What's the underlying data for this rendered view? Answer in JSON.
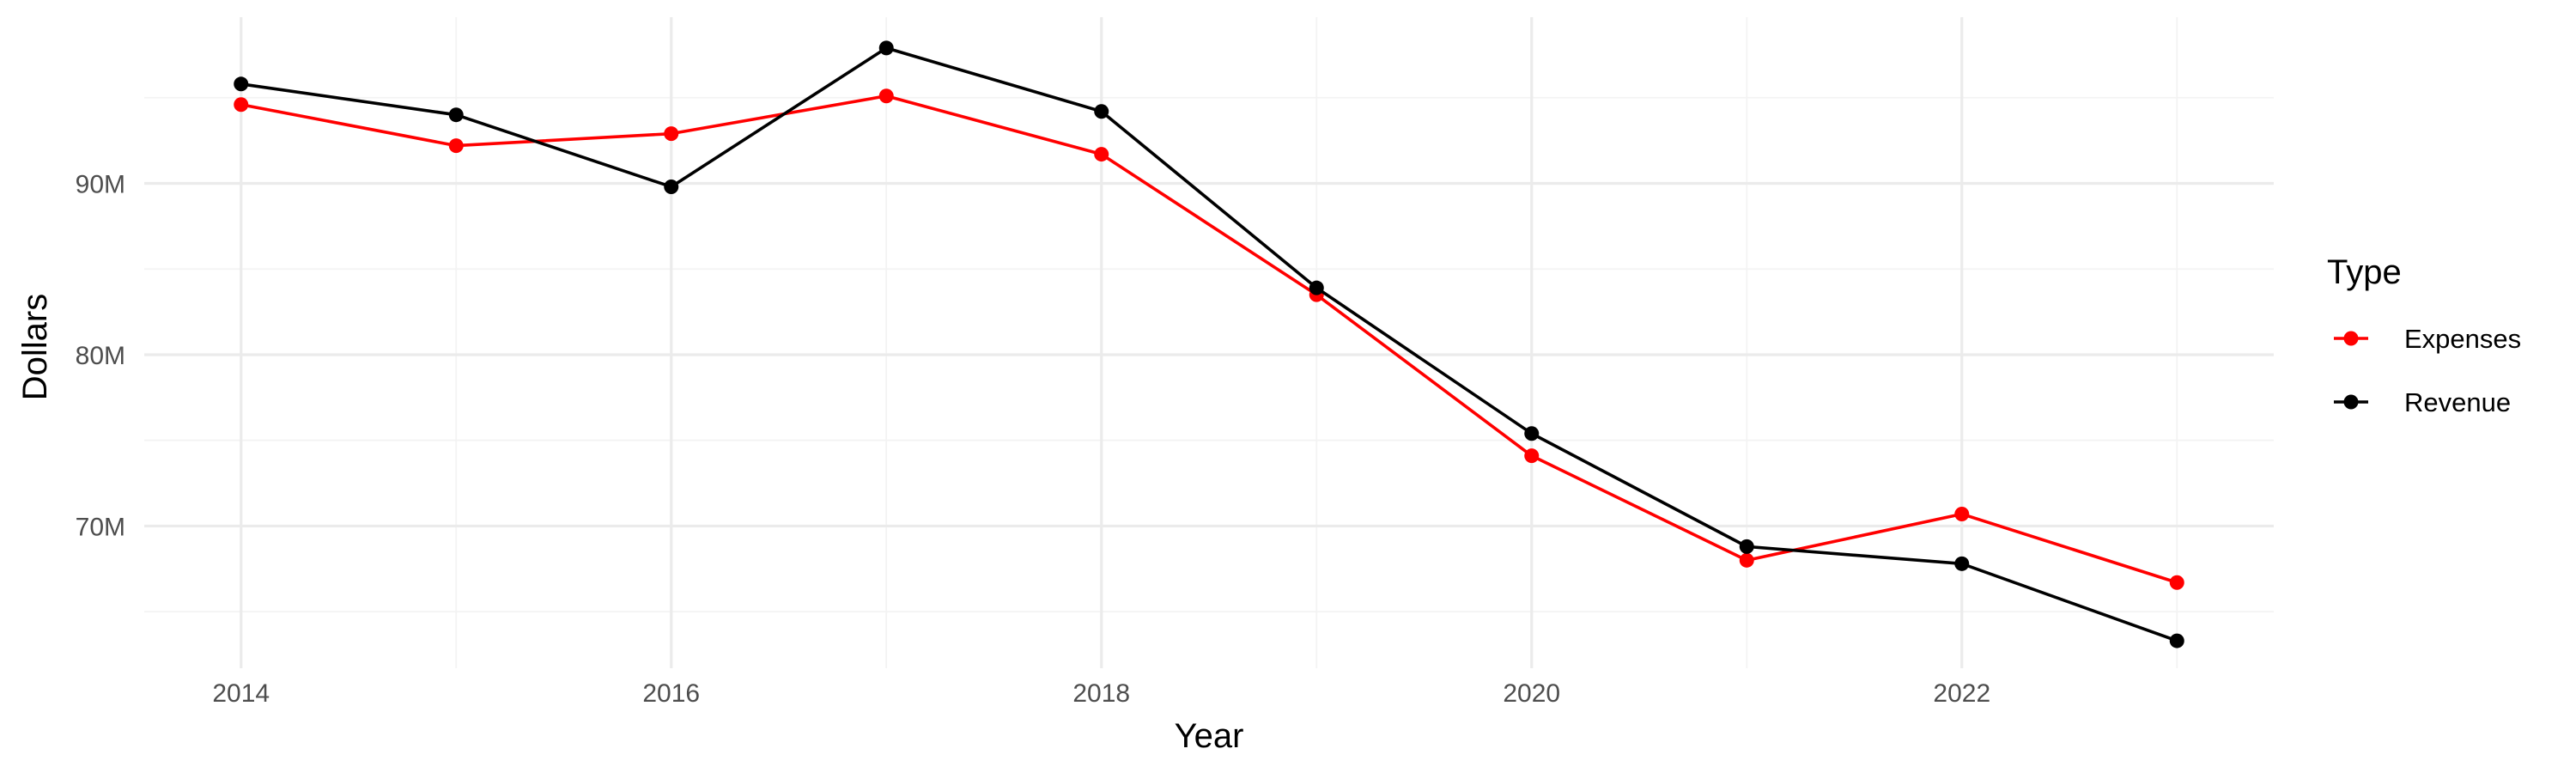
{
  "chart_data": {
    "type": "line",
    "title": "",
    "xlabel": "Year",
    "ylabel": "Dollars",
    "x": [
      2014,
      2015,
      2016,
      2017,
      2018,
      2019,
      2020,
      2021,
      2022,
      2023
    ],
    "x_ticks": [
      2014,
      2016,
      2018,
      2020,
      2022
    ],
    "x_tick_labels": [
      "2014",
      "2016",
      "2018",
      "2020",
      "2022"
    ],
    "xlim": [
      2013.55,
      2023.45
    ],
    "y_ticks": [
      70000000,
      80000000,
      90000000
    ],
    "y_tick_labels": [
      "70M",
      "80M",
      "90M"
    ],
    "ylim": [
      61700000,
      99700000
    ],
    "grid": true,
    "legend": {
      "title": "Type",
      "position": "right"
    },
    "series": [
      {
        "name": "Expenses",
        "color": "#ff0000",
        "values": [
          94600000,
          92200000,
          92900000,
          95100000,
          91700000,
          83500000,
          74100000,
          68000000,
          70700000,
          66700000
        ]
      },
      {
        "name": "Revenue",
        "color": "#000000",
        "values": [
          95800000,
          94000000,
          89800000,
          97900000,
          94200000,
          83900000,
          75400000,
          68800000,
          67800000,
          63300000
        ]
      }
    ]
  }
}
